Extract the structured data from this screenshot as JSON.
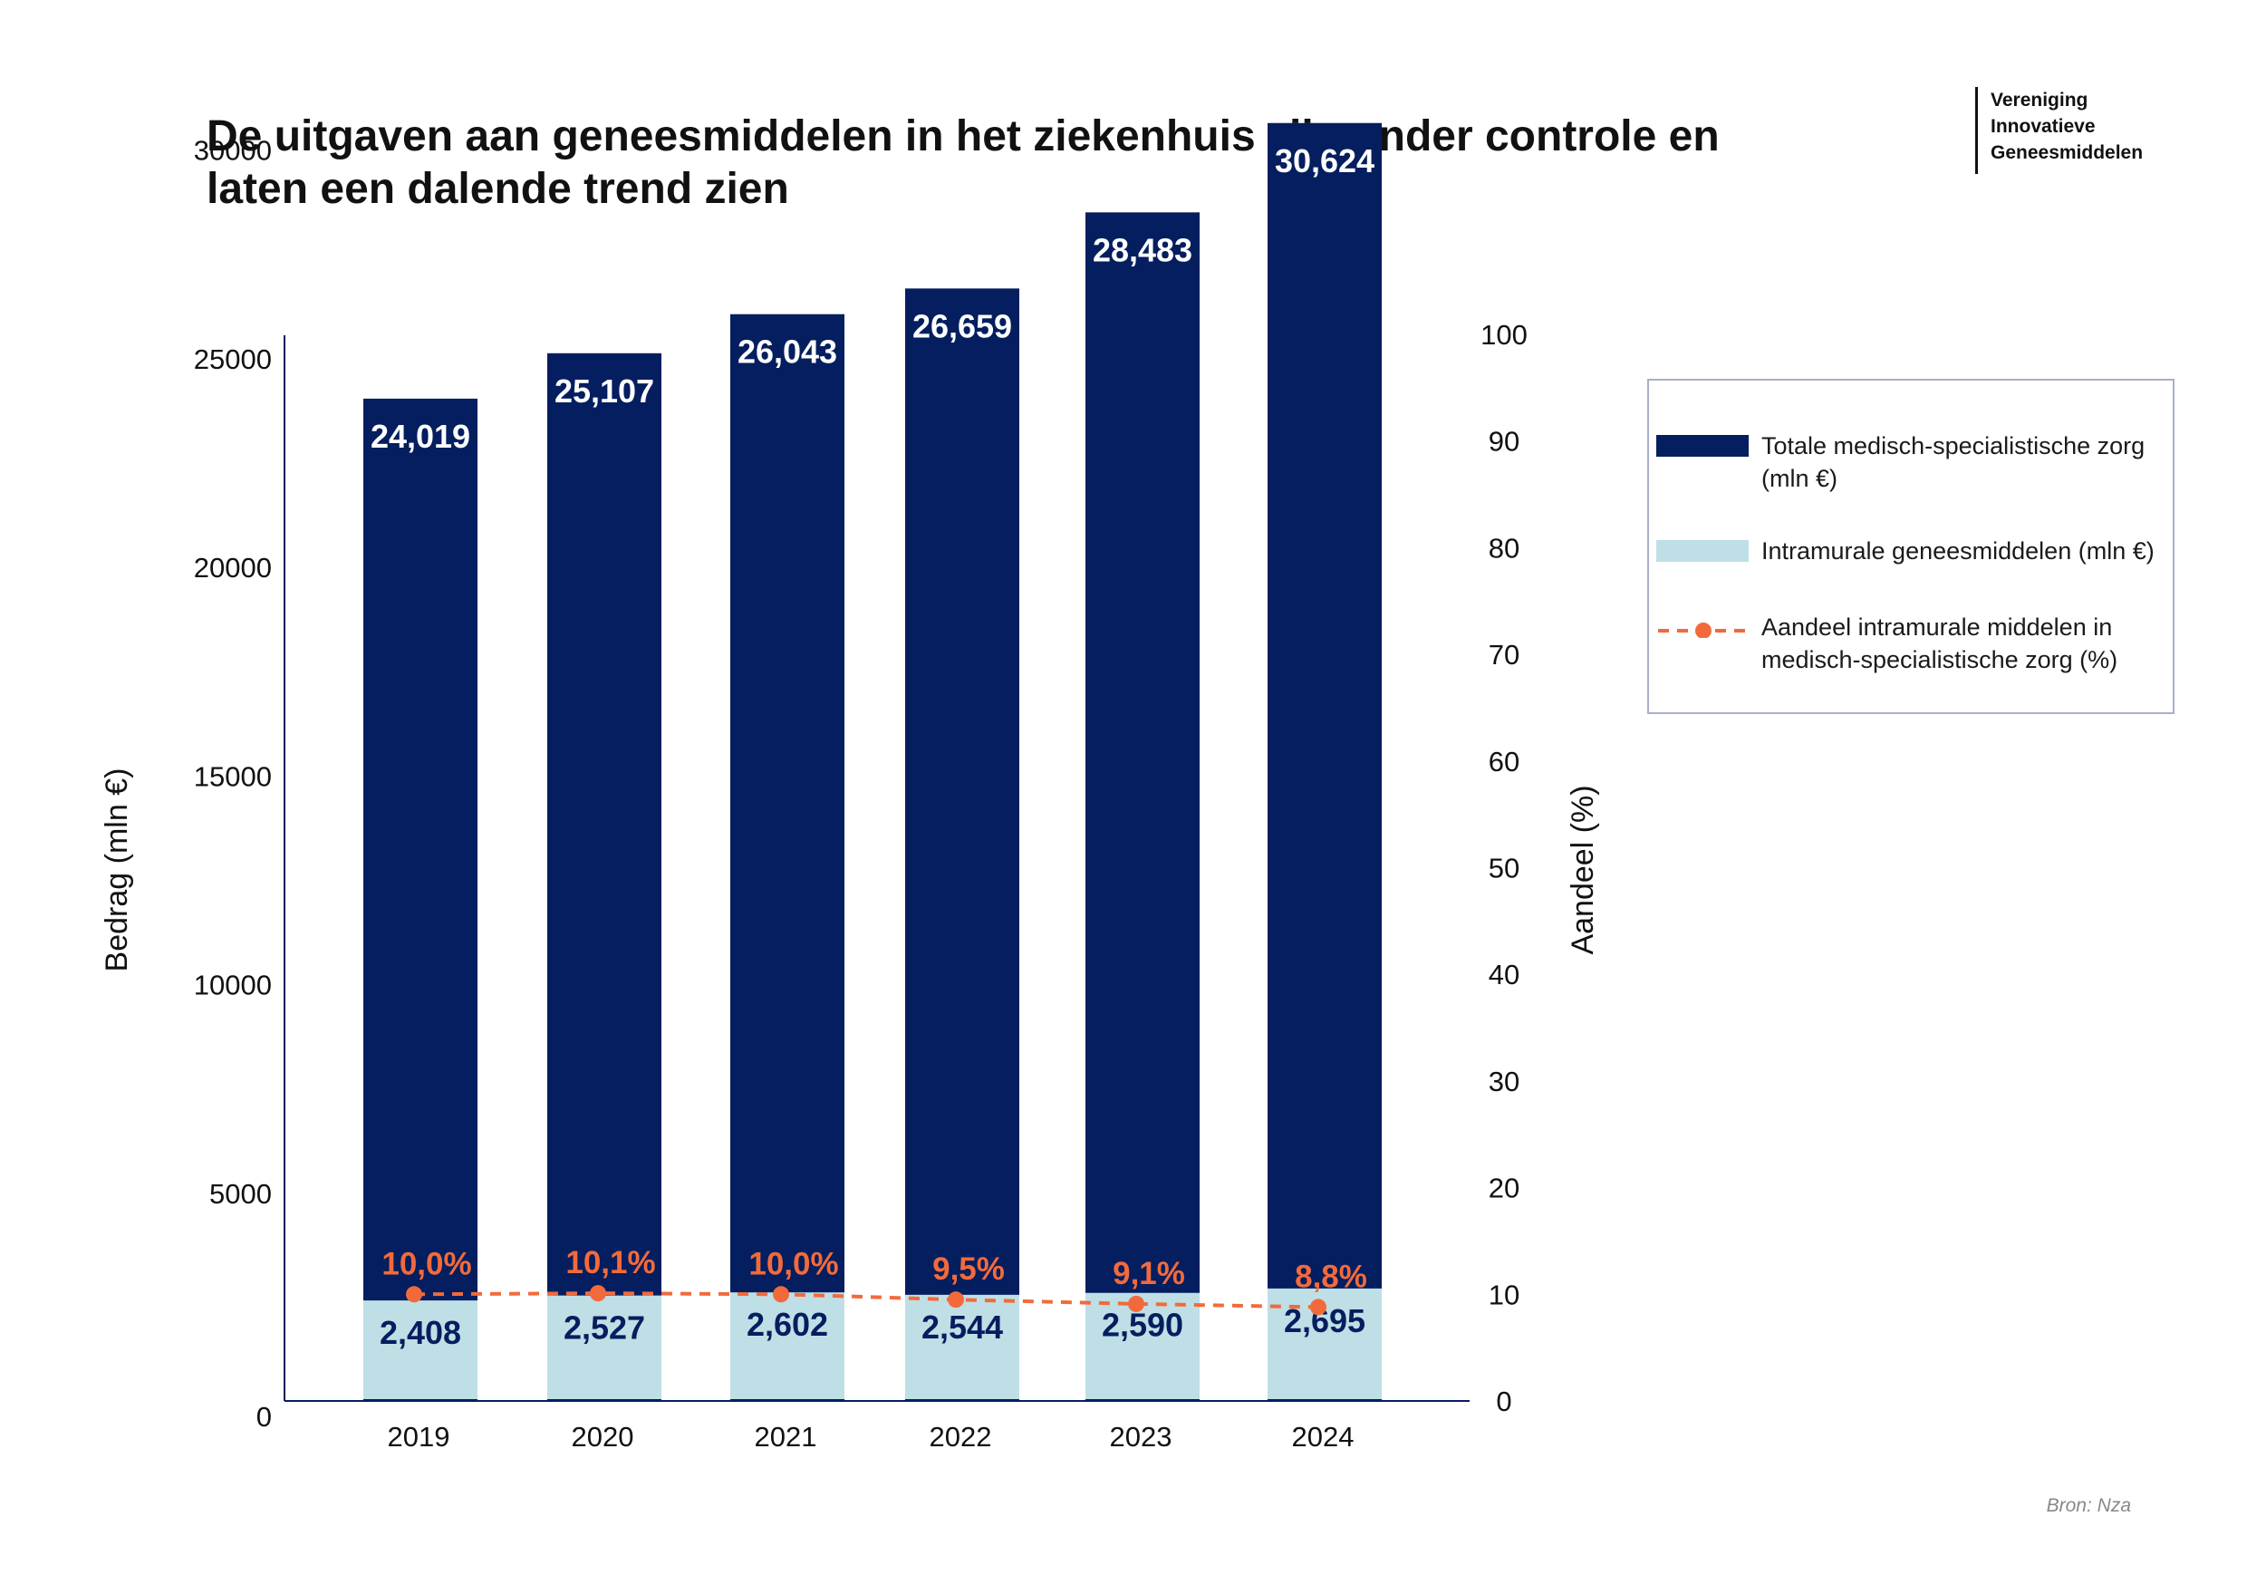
{
  "title": "De uitgaven aan geneesmiddelen in het ziekenhuis zijn onder controle en laten een dalende trend zien",
  "logo": {
    "line1": "Vereniging",
    "line2": "Innovatieve",
    "line3": "Geneesmiddelen"
  },
  "source": "Bron: Nza",
  "colors": {
    "total": "#041e5f",
    "intramural": "#bfdfe6",
    "share": "#f26a3b",
    "axis": "#041e5f"
  },
  "legend": {
    "total": "Totale medisch-specialistische zorg (mln €)",
    "intramural": "Intramurale geneesmiddelen (mln €)",
    "share": "Aandeel intramurale middelen in medisch-specialistische zorg (%)"
  },
  "chart_data": {
    "type": "bar",
    "categories": [
      "2019",
      "2020",
      "2021",
      "2022",
      "2023",
      "2024"
    ],
    "series": [
      {
        "name": "Totale medisch-specialistische zorg (mln €)",
        "values": [
          24019,
          25107,
          26043,
          26659,
          28483,
          30624
        ],
        "labels": [
          "24,019",
          "25,107",
          "26,043",
          "26,659",
          "28,483",
          "30,624"
        ]
      },
      {
        "name": "Intramurale geneesmiddelen (mln €)",
        "values": [
          2408,
          2527,
          2602,
          2544,
          2590,
          2695
        ],
        "labels": [
          "2,408",
          "2,527",
          "2,602",
          "2,544",
          "2,590",
          "2,695"
        ]
      },
      {
        "name": "Aandeel intramurale middelen in medisch-specialistische zorg (%)",
        "type": "line",
        "axis": "right",
        "values": [
          10.0,
          10.1,
          10.0,
          9.5,
          9.1,
          8.8
        ],
        "labels": [
          "10,0%",
          "10,1%",
          "10,0%",
          "9,5%",
          "9,1%",
          "8,8%"
        ]
      }
    ],
    "ylabel": "Bedrag (mln €)",
    "y2label": "Aandeel (%)",
    "ylim": [
      0,
      32000
    ],
    "y2lim": [
      0,
      100
    ],
    "yticks": [
      "0",
      "5000",
      "10000",
      "15000",
      "20000",
      "25000",
      "30000"
    ],
    "y2ticks": [
      "0",
      "10",
      "20",
      "30",
      "40",
      "50",
      "60",
      "70",
      "80",
      "90",
      "100"
    ],
    "grid": false,
    "legend_position": "right"
  }
}
